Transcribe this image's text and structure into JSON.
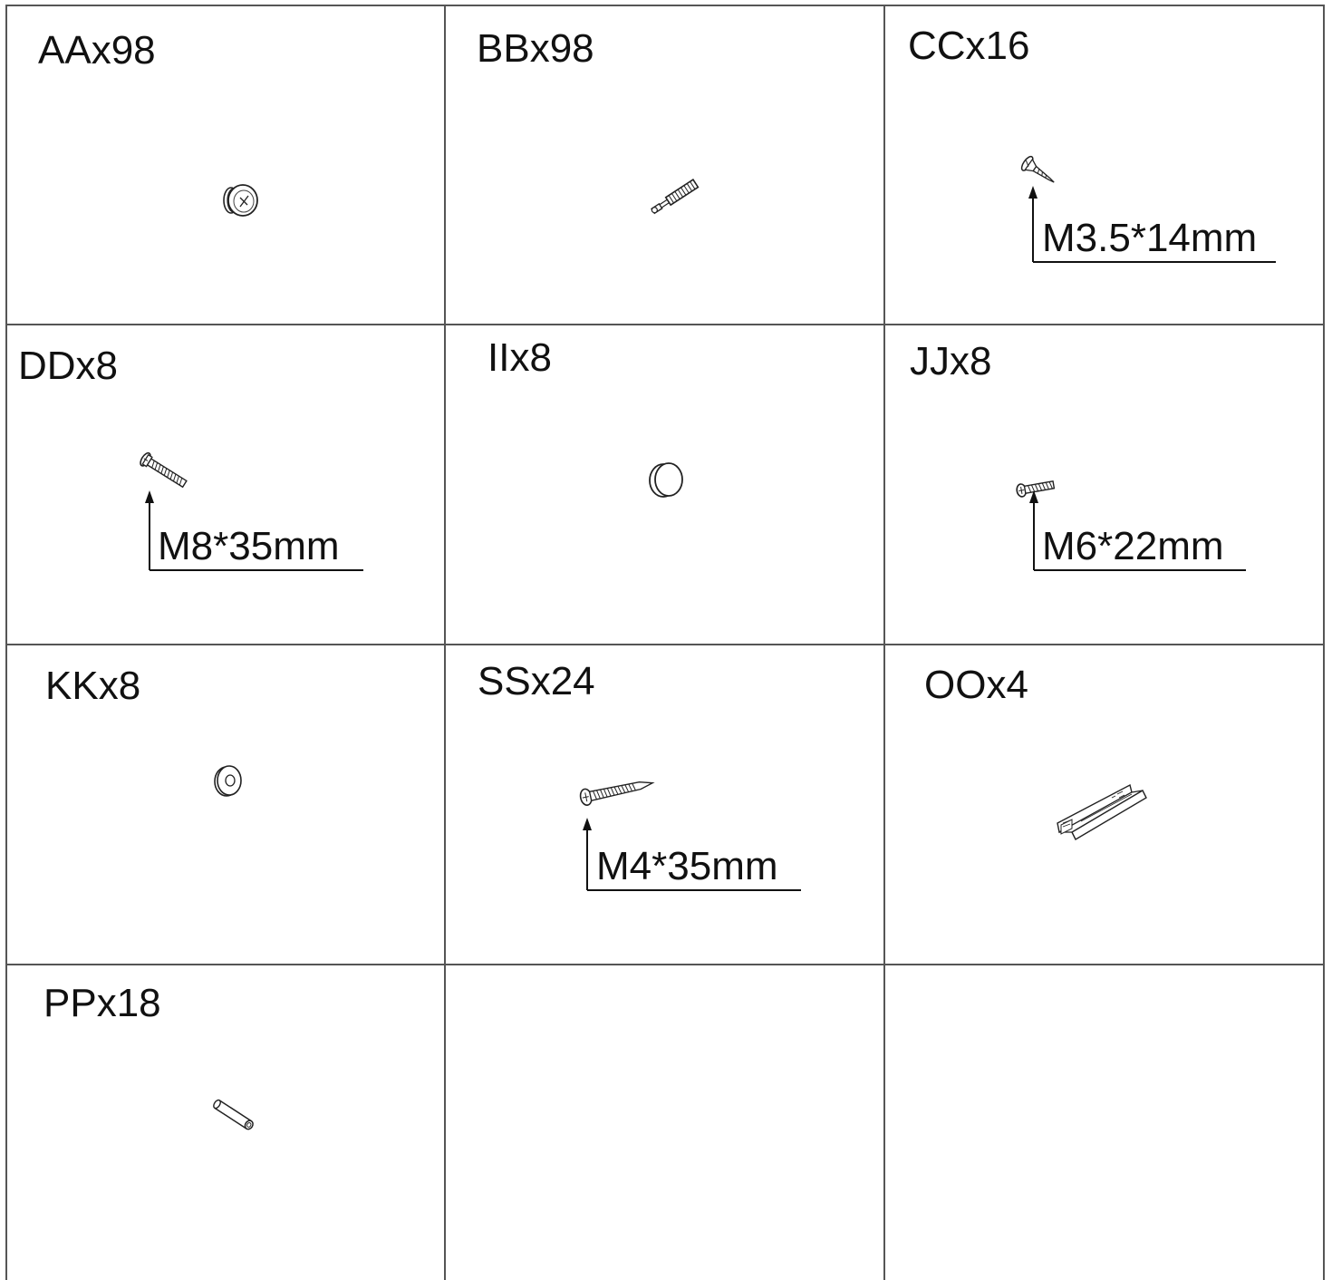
{
  "parts": [
    {
      "id": "AA",
      "label": "AAx98",
      "icon": "cam-lock-icon",
      "size": ""
    },
    {
      "id": "BB",
      "label": "BBx98",
      "icon": "cam-bolt-icon",
      "size": ""
    },
    {
      "id": "CC",
      "label": "CCx16",
      "icon": "wood-screw-icon",
      "size": "M3.5*14mm"
    },
    {
      "id": "DD",
      "label": "DDx8",
      "icon": "machine-bolt-icon",
      "size": "M8*35mm"
    },
    {
      "id": "II",
      "label": "IIx8",
      "icon": "cover-cap-icon",
      "size": ""
    },
    {
      "id": "JJ",
      "label": "JJx8",
      "icon": "short-bolt-icon",
      "size": "M6*22mm"
    },
    {
      "id": "KK",
      "label": "KKx8",
      "icon": "washer-icon",
      "size": ""
    },
    {
      "id": "SS",
      "label": "SSx24",
      "icon": "long-screw-icon",
      "size": "M4*35mm"
    },
    {
      "id": "OO",
      "label": "OOx4",
      "icon": "drawer-slide-icon",
      "size": ""
    },
    {
      "id": "PP",
      "label": "PPx18",
      "icon": "wooden-dowel-icon",
      "size": ""
    }
  ]
}
